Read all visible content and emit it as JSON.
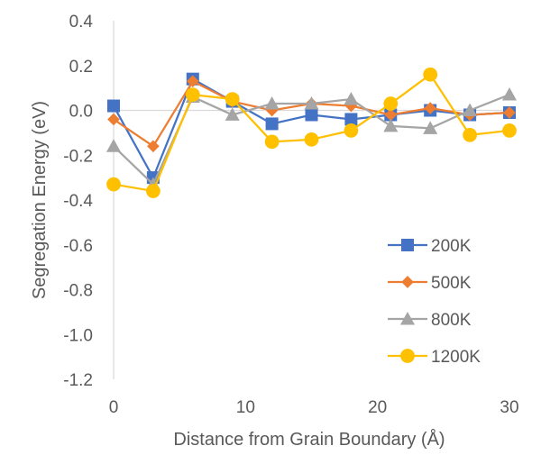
{
  "chart_data": {
    "type": "line",
    "title": "",
    "xlabel": "Distance from Grain Boundary (Å)",
    "ylabel": "Segregation Energy (eV)",
    "xlim": [
      0,
      30
    ],
    "ylim": [
      -1.2,
      0.4
    ],
    "x_ticks": [
      "0",
      "10",
      "20",
      "30"
    ],
    "y_ticks": [
      "0.4",
      "0.2",
      "0.0",
      "-0.2",
      "-0.4",
      "-0.6",
      "-0.8",
      "-1.0",
      "-1.2"
    ],
    "grid": false,
    "legend_position": "bottom-right",
    "x": [
      0,
      3,
      6,
      9,
      12,
      15,
      18,
      21,
      24,
      27,
      30
    ],
    "series": [
      {
        "name": "200K",
        "color": "#4472C4",
        "marker": "square",
        "values": [
          0.02,
          -0.3,
          0.14,
          0.04,
          -0.06,
          -0.02,
          -0.04,
          -0.02,
          0.0,
          -0.02,
          -0.01
        ]
      },
      {
        "name": "500K",
        "color": "#ED7D31",
        "marker": "diamond",
        "values": [
          -0.04,
          -0.16,
          0.13,
          0.04,
          0.0,
          0.03,
          0.02,
          -0.02,
          0.01,
          -0.02,
          -0.01
        ]
      },
      {
        "name": "800K",
        "color": "#A5A5A5",
        "marker": "triangle",
        "values": [
          -0.16,
          -0.33,
          0.06,
          -0.02,
          0.03,
          0.03,
          0.05,
          -0.07,
          -0.08,
          0.0,
          0.07
        ]
      },
      {
        "name": "1200K",
        "color": "#FFC000",
        "marker": "circle",
        "values": [
          -0.33,
          -0.36,
          0.07,
          0.05,
          -0.14,
          -0.13,
          -0.09,
          0.03,
          0.16,
          -0.11,
          -0.09
        ]
      }
    ]
  }
}
